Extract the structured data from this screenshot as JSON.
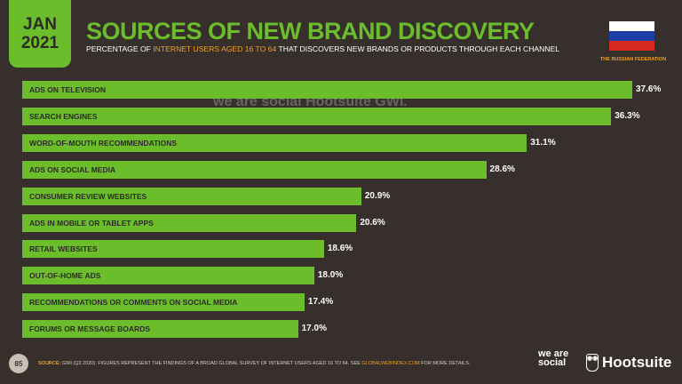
{
  "header": {
    "month": "JAN",
    "year": "2021",
    "title": "SOURCES OF NEW BRAND DISCOVERY",
    "subtitle_pre": "PERCENTAGE OF ",
    "subtitle_hl": "INTERNET USERS AGED 16 TO 64",
    "subtitle_post": " THAT DISCOVERS NEW BRANDS OR PRODUCTS THROUGH EACH CHANNEL",
    "country": "THE RUSSIAN FEDERATION"
  },
  "colors": {
    "bar": "#6cbd2c",
    "background": "#362f2b",
    "accent": "#f0a020"
  },
  "chart_data": {
    "type": "bar",
    "orientation": "horizontal",
    "title": "SOURCES OF NEW BRAND DISCOVERY",
    "categories": [
      "ADS ON TELEVISION",
      "SEARCH ENGINES",
      "WORD-OF-MOUTH RECOMMENDATIONS",
      "ADS ON SOCIAL MEDIA",
      "CONSUMER REVIEW WEBSITES",
      "ADS IN MOBILE OR TABLET APPS",
      "RETAIL WEBSITES",
      "OUT-OF-HOME ADS",
      "RECOMMENDATIONS OR COMMENTS ON SOCIAL MEDIA",
      "FORUMS OR MESSAGE BOARDS"
    ],
    "values": [
      37.6,
      36.3,
      31.1,
      28.6,
      20.9,
      20.6,
      18.6,
      18.0,
      17.4,
      17.0
    ],
    "labels": [
      "37.6%",
      "36.3%",
      "31.1%",
      "28.6%",
      "20.9%",
      "20.6%",
      "18.6%",
      "18.0%",
      "17.4%",
      "17.0%"
    ],
    "xlim": [
      0,
      37.6
    ]
  },
  "watermark": "we are social  Hootsuite  GWI.",
  "footer": {
    "page": "85",
    "source_label": "SOURCE:",
    "source_text": " GWI (Q3 2020). FIGURES REPRESENT THE FINDINGS OF A BROAD GLOBAL SURVEY OF INTERNET USERS AGED 16 TO 64. SEE ",
    "link": "GLOBALWEBINDEX.COM",
    "source_end": " FOR MORE DETAILS.",
    "logo_was": "we are social",
    "logo_hoot": "Hootsuite"
  }
}
